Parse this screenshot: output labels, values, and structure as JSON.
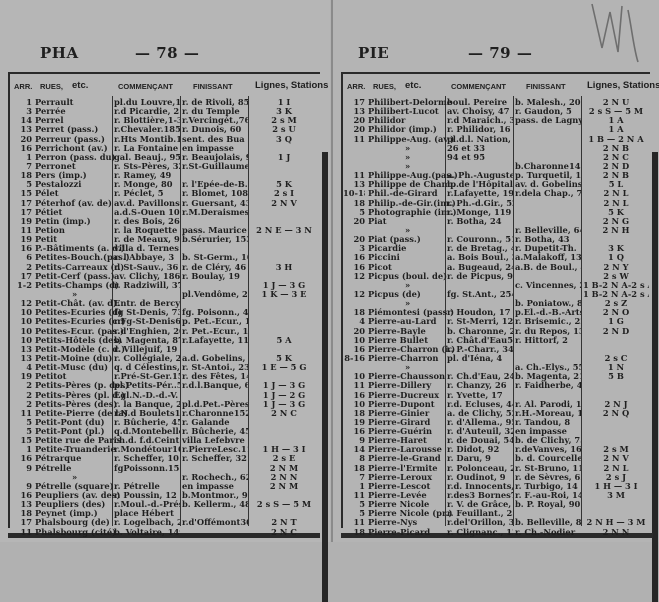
{
  "left_page": {
    "code": "PHA",
    "page_number": "— 78 —",
    "columns": {
      "arr": "ARR.",
      "rues": "RUES,",
      "etc": "etc.",
      "start": "COMMENÇANT",
      "end": "FINISSANT",
      "lines": "Lignes, Stations"
    },
    "rows": [
      [
        "1",
        "Perrault",
        "pl.du Louvre,1",
        "r. de Rivoli, 85",
        "1 I"
      ],
      [
        "3",
        "Perrée",
        "r.d Picardie, 21",
        "r. du Temple",
        "3 K"
      ],
      [
        "14",
        "Perrel",
        "r. Blottière,1-3",
        "r.Vercingét.,76",
        "2 s M"
      ],
      [
        "13",
        "Perret (pass.)",
        "r.Chevaler.185",
        "r. Dunois, 60",
        "2 s U"
      ],
      [
        "20",
        "Perreur (pass.)",
        "r.Hts Montib.11",
        "sent. des Bua",
        "3 Q"
      ],
      [
        "16",
        "Perrichont (av.)",
        "r. La Fontaine",
        "en impasse",
        ""
      ],
      [
        "1",
        "Perron (pass. du)",
        "gal. Beauj., 95",
        "r. Beaujolais, 9",
        "1 J"
      ],
      [
        "7",
        "Perronet",
        "r. Sts-Pères, 32",
        "r.St-Guillaume",
        ""
      ],
      [
        "18",
        "Pers (imp.)",
        "r. Ramey, 49",
        "",
        ""
      ],
      [
        "5",
        "Pestalozzi",
        "r. Monge, 80",
        "r. l'Epée-de-B.",
        "5 K"
      ],
      [
        "15",
        "Pélet",
        "r. Péclet, 5",
        "r. Blomet, 108",
        "2 s I"
      ],
      [
        "17",
        "Péterhof (av. de)",
        "av.d. Pavillons",
        "r. Guersant, 43",
        "2 N V"
      ],
      [
        "17",
        "Pétiet",
        "a.d.S-Ouen 103",
        "r.M.Deraismes",
        ""
      ],
      [
        "19",
        "Petin (imp.)",
        "r. des Bois, 26",
        "",
        ""
      ],
      [
        "11",
        "Petion",
        "r. la Roquette",
        "pass. Maurice",
        "2 N E — 3 N"
      ],
      [
        "19",
        "Petit",
        "r. de Meaux, 92",
        "b.Sérurier, 153",
        ""
      ],
      [
        "16",
        "P.-Bâtiments (a. d.)",
        "villa d. Ternes",
        "",
        ""
      ],
      [
        "6",
        "Petites-Bouch.(pas.)",
        "r. l'Abbaye, 3",
        "b. St-Germ., 168",
        ""
      ],
      [
        "2",
        "Petits-Carreaux (d)",
        "r. St-Sauv., 36",
        "r. de Cléry, 46",
        "3 H"
      ],
      [
        "17",
        "Petit-Cerf (pass.)",
        "av. Clichy, 186",
        "r. Boulay, 19",
        ""
      ],
      [
        "1-2",
        "Petits-Champs (d)",
        "r. Radziwill, 37",
        "",
        "1 J — 3 G"
      ],
      [
        "",
        "»",
        "",
        "pl.Vendôme, 28",
        "1 K — 3 E"
      ],
      [
        "12",
        "Petit-Chât. (av. d).",
        "Entr. de Bercy",
        "",
        ""
      ],
      [
        "10",
        "Petites-Ecuries (d)",
        "fg St-Denis, 73",
        "fg. Poisonn., 44",
        ""
      ],
      [
        "10",
        "Petites-Ecuries (cr)",
        "r.Fg-St-Denis63",
        "p. Pet.-Ecur., 13",
        ""
      ],
      [
        "10",
        "Petites-Ecur. (pas.)",
        "r.d'Enghien, 20",
        "r. Pet.-Ecur., 17",
        ""
      ],
      [
        "10",
        "Petits-Hôtels (des)",
        "b. Magenta, 87",
        "r.Lafayette, 116",
        "5 A"
      ],
      [
        "13",
        "Petit-Modèle (c. d.)",
        "r. Villejuif, 19",
        "",
        ""
      ],
      [
        "13",
        "Petit-Moine (du)",
        "r. Collégiale, 23",
        "a.d. Gobelins, 7",
        "5 K"
      ],
      [
        "4",
        "Petit-Musc (du)",
        "q. d Célestins, 2",
        "r. St-Antoi., 23",
        "1 E — 5 G"
      ],
      [
        "19",
        "Petitot",
        "r.Pré-St-Ger.15",
        "r. des Fêtes, 14",
        ""
      ],
      [
        "2",
        "Petits-Pères (p. des)",
        "pl.Petits-Pér..5",
        "r.d.l.Banque, 6",
        "1 J — 3 G"
      ],
      [
        "2",
        "Petits-Pères (pl. d.)",
        "Égl.N.-D.-d.-V.",
        "",
        "1 J — 2 G"
      ],
      [
        "2",
        "Petits-Pères (des)",
        "r. la Banque, 2",
        "pl.d.Pet.-Pères",
        "1 J — 3 G"
      ],
      [
        "11",
        "Petite-Pierre (de la)",
        "r.N.d Boulets17",
        "r.Charonne152",
        "2 N C"
      ],
      [
        "5",
        "Petit-Pont (du)",
        "r. Bûcherie, 45",
        "r. Galande",
        ""
      ],
      [
        "5",
        "Petit-Pont (pl.)",
        "q.d.Montebello",
        "r. Bûcherie, 45",
        ""
      ],
      [
        "15",
        "Petite rue de Paris",
        "ch.d. f.d.Ceint.",
        "villa Lefebvre",
        ""
      ],
      [
        "1",
        "Petite-Truanderie",
        "r.Mondétour16",
        "r.PierreLesc.11",
        "1 H — 3 I"
      ],
      [
        "16",
        "Pétrarque",
        "r. Scheffer, 10",
        "r. Scheffer, 32",
        "2 s E"
      ],
      [
        "9",
        "Pétrelle",
        "fgPoissonn.155",
        "",
        "2 N M"
      ],
      [
        "",
        "»",
        "",
        "r. Rochech., 62",
        "2 N N"
      ],
      [
        "9",
        "Pétrelle (square)",
        "r. Pétrelle",
        "en impasse",
        "2 N M"
      ],
      [
        "16",
        "Peupliers (av. des)",
        "r. Poussin, 12",
        "b.Montmor., 93",
        ""
      ],
      [
        "13",
        "Peupliers (des)",
        "r.Moul.-d.-Prés",
        "b. Kellerm., 48",
        "2 s S — 5 M"
      ],
      [
        "18",
        "Peynet (imp.)",
        "place Hébert",
        "",
        ""
      ],
      [
        "17",
        "Phalsbourg (de)",
        "r. Logelbach, 2",
        "r.d'Offémont30",
        "2 N T"
      ],
      [
        "11",
        "Phalsbourg (cité)",
        "b. Voltaire, 149",
        "",
        "2 N C"
      ]
    ]
  },
  "right_page": {
    "code": "PIE",
    "page_number": "— 79 —",
    "columns": {
      "arr": "ARR.",
      "rues": "RUES,",
      "etc": "etc.",
      "start": "COMMENÇANT",
      "end": "FINISSANT",
      "lines": "Lignes, Stations"
    },
    "rows": [
      [
        "17",
        "Philibert-Delorme",
        "boul. Pereire",
        "b. Malesh., 201",
        "2 N U"
      ],
      [
        "13",
        "Philibert-Lucot",
        "av. Choisy, 47",
        "r. Gaudon, 5",
        "2 s S — 5 M"
      ],
      [
        "20",
        "Philidor",
        "r.d Maraich., 36",
        "pass. de Lagny",
        "1 A"
      ],
      [
        "20",
        "Philidor (imp.)",
        "r. Philidor, 16",
        "",
        "1 A"
      ],
      [
        "11",
        "Philippe-Aug. (av.)",
        "pl.d.l. Nation, 7",
        "",
        "1 B — 2 N A"
      ],
      [
        "",
        "»",
        "26 et 33",
        "",
        "2 N B"
      ],
      [
        "",
        "»",
        "94 et 95",
        "",
        "2 N C"
      ],
      [
        "",
        "»",
        "",
        "b.Charonne149",
        "2 N D"
      ],
      [
        "11",
        "Philippe-Aug.(pas.)",
        "a. Ph.-Auguste",
        "p. Turquetil, 10",
        "2 N B"
      ],
      [
        "13",
        "Philippe de Champ.",
        "b. de l'Hôpital",
        "av. d. Gobelins",
        "5 L"
      ],
      [
        "10-18",
        "Phil.-de-Girard",
        "r.Lafayette, 193",
        "r.dela Chap., 76",
        "2 N L"
      ],
      [
        "18",
        "Philip.-de-Gir.(im.)",
        "r. Ph.-d.Gir., 52",
        "",
        "2 N L"
      ],
      [
        "5",
        "Photographie (im.)",
        "r. Monge, 119",
        "",
        "5 K"
      ],
      [
        "20",
        "Piat",
        "r. Botha, 24",
        "",
        "2 N G"
      ],
      [
        "",
        "»",
        "",
        "r. Belleville, 64",
        "2 N H"
      ],
      [
        "20",
        "Piat (pass.)",
        "r. Couronn., 51",
        "r. Botha, 43",
        ""
      ],
      [
        "3",
        "Picardie",
        "r. de Bretag., 48",
        "r. Dupetit-Th.",
        "3 K"
      ],
      [
        "16",
        "Piccini",
        "a. Bois Boul., 36",
        "a.Malakoff, 136",
        "1 Q"
      ],
      [
        "16",
        "Picot",
        "a. Bugeaud, 24",
        "a.B. de Boul., 49",
        "2 N Y"
      ],
      [
        "12",
        "Picpus (boul. de)",
        "r. de Picpus, 93",
        "",
        "2 s W"
      ],
      [
        "",
        "»",
        "",
        "c. Vincennes, 2",
        "1 B-2 N A-2 s AC"
      ],
      [
        "12",
        "Picpus (de)",
        "fg. St.Ant., 254",
        "",
        "1 B-2 N A-2 s AC"
      ],
      [
        "",
        "»",
        "",
        "b. Poniatow., 8",
        "2 s Z"
      ],
      [
        "18",
        "Piémontesi (pass.)",
        "r. Houdon, 17",
        "p.El.-d.-B.-Arts",
        "2 N O"
      ],
      [
        "4",
        "Pierre-au-Lard",
        "r. St-Merri, 12",
        "r. Brisemic., 22",
        "1 G"
      ],
      [
        "20",
        "Pierre-Bayle",
        "b. Charonne, 22",
        "r. du Repos, 13",
        "2 N D"
      ],
      [
        "10",
        "Pierre Bullet",
        "r. Chât.d'Eau52",
        "r. Hittorf, 2",
        ""
      ],
      [
        "16",
        "Pierre-Charron (i.)",
        "r. P.-Charr., 34",
        "",
        ""
      ],
      [
        "8-16",
        "Pierre-Charron",
        "pl. d'Iéna, 4",
        "",
        "2 s C"
      ],
      [
        "",
        "»",
        "",
        "a. Ch.-Elys., 55",
        "1 N"
      ],
      [
        "10",
        "Pierre-Chausson",
        "r. Ch.d'Eau, 24",
        "b. Magenta, 21",
        "5 B"
      ],
      [
        "11",
        "Pierre-Dillery",
        "r. Chanzy, 26",
        "r. Faidherbe, 44",
        ""
      ],
      [
        "16",
        "Pierre-Ducreux",
        "r. Yvette, 17",
        "",
        ""
      ],
      [
        "10",
        "Pierre-Dupont",
        "r.d. Ecluses, 44",
        "r. Al. Parodi, 11",
        "2 N J"
      ],
      [
        "18",
        "Pierre-Ginier",
        "a. de Clichy, 52",
        "r.H.-Moreau, 13",
        "2 N Q"
      ],
      [
        "19",
        "Pierre-Girard",
        "r. d'Allema., 95",
        "r. Tandou, 8",
        ""
      ],
      [
        "16",
        "Pierre-Guérin",
        "r. d'Auteuil, 32",
        "en impasse",
        ""
      ],
      [
        "9",
        "Pierre-Haret",
        "r. de Douai, 54",
        "b. de Clichy, 75",
        ""
      ],
      [
        "14",
        "Pierre-Larousse",
        "r. Didot, 92",
        "r.deVanves, 161",
        "2 s M"
      ],
      [
        "8",
        "Pierre-le-Grand",
        "r. Daru, 9",
        "b. d. Courcelles",
        "2 N V"
      ],
      [
        "18",
        "Pierre-l'Ermite",
        "r. Polonceau, 2",
        "r. St-Bruno, 11",
        "2 N L"
      ],
      [
        "7",
        "Pierre-Leroux",
        "r. Oudinot, 9",
        "r. de Sèvres, 62",
        "2 s J"
      ],
      [
        "1",
        "Pierre-Lescot",
        "r.d. Innocents, 2",
        "r. Turbigo, 14",
        "1 H — 3 I"
      ],
      [
        "11",
        "Pierre-Levée",
        "r.des3 Bornes7",
        "r. F.-au-Roi, 14",
        "3 M"
      ],
      [
        "5",
        "Pierre Nicole",
        "r. V. de Grâce, 9",
        "b. P. Royal, 90",
        ""
      ],
      [
        "5",
        "Pierre Nicole (pr.)",
        "r. Feuillant., 25",
        "",
        ""
      ],
      [
        "11",
        "Pierre-Nys",
        "r.del'Orillon, 35",
        "b. Belleville, 87",
        "2 N H — 3 M"
      ],
      [
        "18",
        "Pierre-Picard",
        "r. Clignanc., 13",
        "r. Ch.-Nodier",
        "2 N N"
      ]
    ]
  },
  "colors": {
    "paper": "#b5b5b5",
    "ink": "#1f1f1f",
    "rule": "#2a2a2a"
  }
}
